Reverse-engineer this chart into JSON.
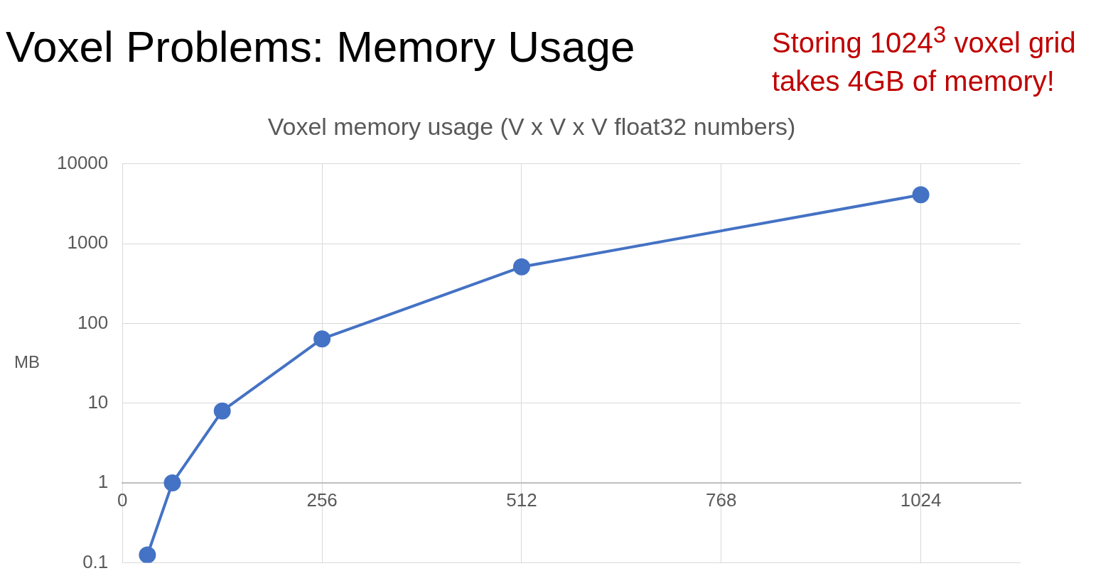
{
  "chart_data": {
    "type": "line",
    "title": "Voxel memory usage (V x V x V float32 numbers)",
    "annotations": [
      "Voxel Problems: Memory Usage",
      "Storing 1024$^{3}$ voxel grid takes 4GB of memory!"
    ],
    "ylabel": "MB",
    "x": [
      32,
      64,
      128,
      256,
      512,
      1024
    ],
    "series": [
      {
        "color": "#4472c4",
        "values": [
          0.125,
          1,
          8,
          64,
          512,
          4096
        ]
      }
    ],
    "xlim": [
      0,
      1152
    ],
    "xticks": [
      0,
      256,
      512,
      768,
      1024
    ],
    "ylim": [
      0.1,
      10000
    ],
    "yticks": [
      0.1,
      1,
      10,
      100,
      1000,
      10000
    ],
    "log": "y",
    "grid": true,
    "legend": false,
    "marker": "circle",
    "line_style": "solid"
  }
}
